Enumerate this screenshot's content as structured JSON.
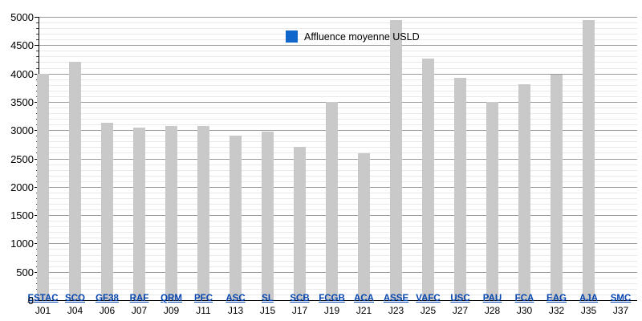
{
  "chart_data": {
    "type": "bar",
    "title": "",
    "legend": "Affluence moyenne USLD",
    "categories": [
      "ESTAC",
      "SCO",
      "GF38",
      "RAF",
      "QRM",
      "PFC",
      "ASC",
      "SL",
      "SCB",
      "FCGB",
      "ACA",
      "ASSE",
      "VAFC",
      "USC",
      "PAU",
      "FCA",
      "EAG",
      "AJA",
      "SMC"
    ],
    "matchdays": [
      "J01",
      "J04",
      "J06",
      "J07",
      "J09",
      "J11",
      "J13",
      "J15",
      "J17",
      "J19",
      "J21",
      "J23",
      "J25",
      "J27",
      "J28",
      "J30",
      "J32",
      "J35",
      "J37"
    ],
    "values": [
      4000,
      4200,
      3130,
      3040,
      3070,
      3070,
      2910,
      2970,
      2700,
      3500,
      2590,
      4940,
      4260,
      3930,
      3500,
      3810,
      3980,
      4940,
      0
    ],
    "xlabel": "",
    "ylabel": "",
    "ylim": [
      0,
      5000
    ],
    "y_ticks": [
      "0",
      "500",
      "1000",
      "1500",
      "2000",
      "2500",
      "3000",
      "3500",
      "4000",
      "4500",
      "5000"
    ],
    "y_minor_step": 100,
    "grid": true,
    "legend_position": "top-center",
    "colors": {
      "bar": "#c9c9c9",
      "legend_swatch": "#1166cc",
      "team_link": "#0645ad",
      "major_grid": "#9a9a9a",
      "minor_grid": "#e9e9e9",
      "axis": "#000000"
    }
  }
}
